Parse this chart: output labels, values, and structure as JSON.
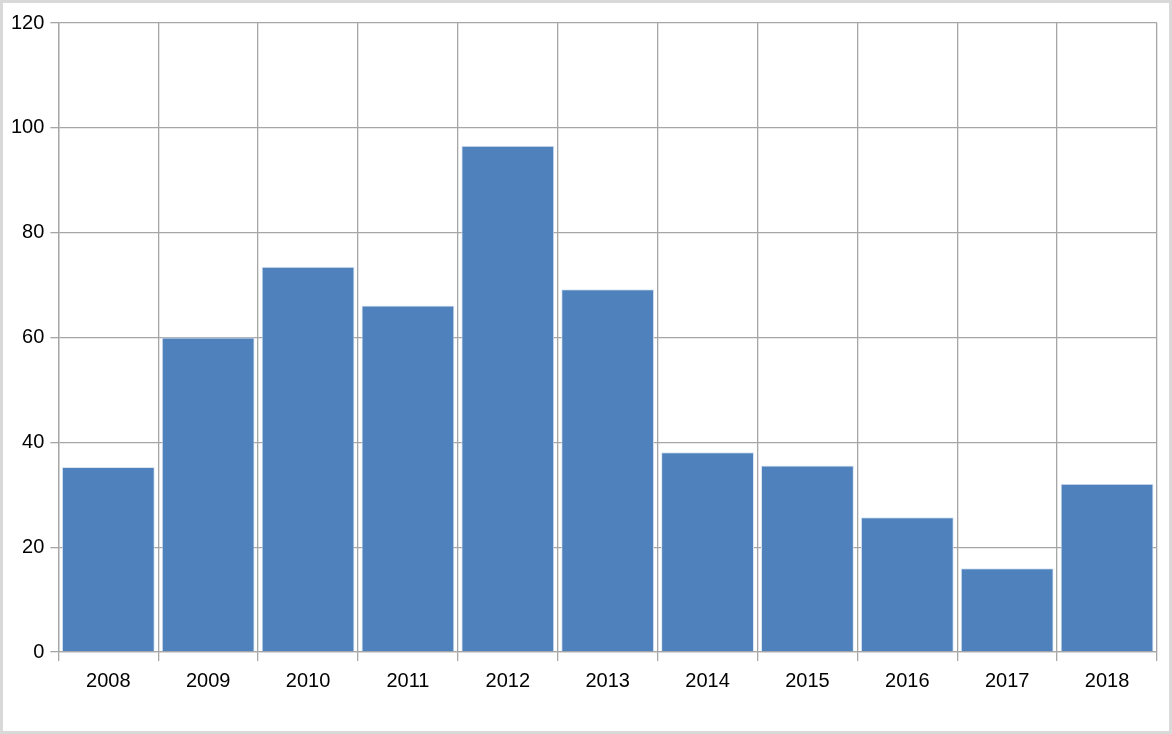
{
  "chart_data": {
    "type": "bar",
    "categories": [
      "2008",
      "2009",
      "2010",
      "2011",
      "2012",
      "2013",
      "2014",
      "2015",
      "2016",
      "2017",
      "2018"
    ],
    "values": [
      35.3,
      60,
      73.5,
      66.1,
      96.6,
      69.2,
      38.1,
      35.6,
      25.7,
      16,
      32.1
    ],
    "color": "#4f81bd",
    "ylim": [
      0,
      120
    ],
    "yticks": [
      0,
      20,
      40,
      60,
      80,
      100,
      120
    ],
    "grid": true
  }
}
